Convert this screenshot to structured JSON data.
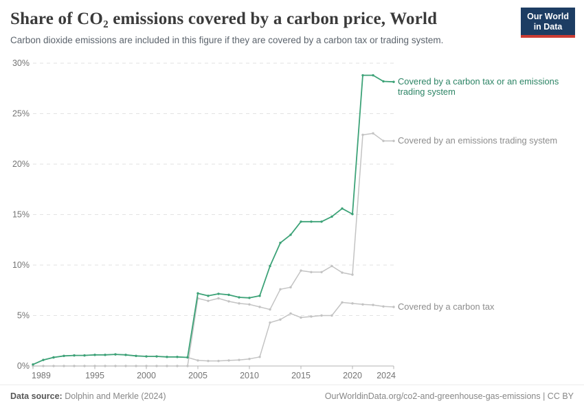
{
  "header": {
    "title": "Share of CO₂ emissions covered by a carbon price, World",
    "subtitle": "Carbon dioxide emissions are included in this figure if they are covered by a carbon tax or trading system.",
    "logo": {
      "line1": "Our World",
      "line2": "in Data",
      "bg_color": "#1d3d63",
      "accent_color": "#cc3c33"
    }
  },
  "chart_data": {
    "type": "line",
    "title": "Share of CO₂ emissions covered by a carbon price, World",
    "xlabel": "",
    "ylabel": "",
    "x": [
      1989,
      1990,
      1991,
      1992,
      1993,
      1994,
      1995,
      1996,
      1997,
      1998,
      1999,
      2000,
      2001,
      2002,
      2003,
      2004,
      2005,
      2006,
      2007,
      2008,
      2009,
      2010,
      2011,
      2012,
      2013,
      2014,
      2015,
      2016,
      2017,
      2018,
      2019,
      2020,
      2021,
      2022,
      2023,
      2024
    ],
    "series": [
      {
        "name": "Covered by a carbon tax or an emissions trading system",
        "label_lines": [
          "Covered by a carbon tax or an emissions",
          "trading system"
        ],
        "color": "#3ca277",
        "label_color": "#2c8465",
        "values": [
          0.15,
          0.6,
          0.85,
          1.0,
          1.05,
          1.05,
          1.1,
          1.1,
          1.15,
          1.1,
          1.0,
          0.95,
          0.95,
          0.9,
          0.9,
          0.85,
          7.2,
          6.95,
          7.15,
          7.05,
          6.8,
          6.75,
          6.95,
          9.9,
          12.2,
          13.0,
          14.3,
          14.3,
          14.3,
          14.8,
          15.6,
          15.05,
          28.8,
          28.8,
          28.2,
          28.15
        ]
      },
      {
        "name": "Covered by an emissions trading system",
        "label_lines": [
          "Covered by an emissions trading system"
        ],
        "color": "#c3c3c3",
        "label_color": "#8d8d8d",
        "values": [
          0,
          0,
          0,
          0,
          0,
          0,
          0,
          0,
          0,
          0,
          0,
          0,
          0,
          0,
          0,
          0,
          6.7,
          6.45,
          6.7,
          6.4,
          6.2,
          6.1,
          5.85,
          5.6,
          7.6,
          7.8,
          9.45,
          9.3,
          9.3,
          9.9,
          9.25,
          9.05,
          22.9,
          23.05,
          22.3,
          22.3
        ]
      },
      {
        "name": "Covered by a carbon tax",
        "label_lines": [
          "Covered by a carbon tax"
        ],
        "color": "#c3c3c3",
        "label_color": "#8d8d8d",
        "values": [
          0.15,
          0.6,
          0.85,
          1.0,
          1.05,
          1.05,
          1.1,
          1.1,
          1.15,
          1.1,
          1.0,
          0.95,
          0.95,
          0.9,
          0.9,
          0.85,
          0.55,
          0.5,
          0.5,
          0.55,
          0.6,
          0.7,
          0.9,
          4.3,
          4.6,
          5.2,
          4.8,
          4.9,
          5.0,
          5.0,
          6.3,
          6.2,
          6.1,
          6.05,
          5.9,
          5.85
        ]
      }
    ],
    "ylim": [
      0,
      30
    ],
    "yticks": [
      0,
      5,
      10,
      15,
      20,
      25,
      30
    ],
    "ytick_labels": [
      "0%",
      "5%",
      "10%",
      "15%",
      "20%",
      "25%",
      "30%"
    ],
    "xticks": [
      1989,
      1995,
      2000,
      2005,
      2010,
      2015,
      2020,
      2024
    ],
    "xtick_labels": [
      "1989",
      "1995",
      "2000",
      "2005",
      "2010",
      "2015",
      "2020",
      "2024"
    ],
    "grid": "horizontal-dashed",
    "legend_position": "right-of-line-end",
    "colors": {
      "gridline": "#e2e2e2",
      "axis": "#b3b3b3",
      "tick_text": "#747474"
    }
  },
  "footer": {
    "source_label": "Data source:",
    "source_value": "Dolphin and Merkle (2024)",
    "rights": "OurWorldinData.org/co2-and-greenhouse-gas-emissions | CC BY"
  }
}
